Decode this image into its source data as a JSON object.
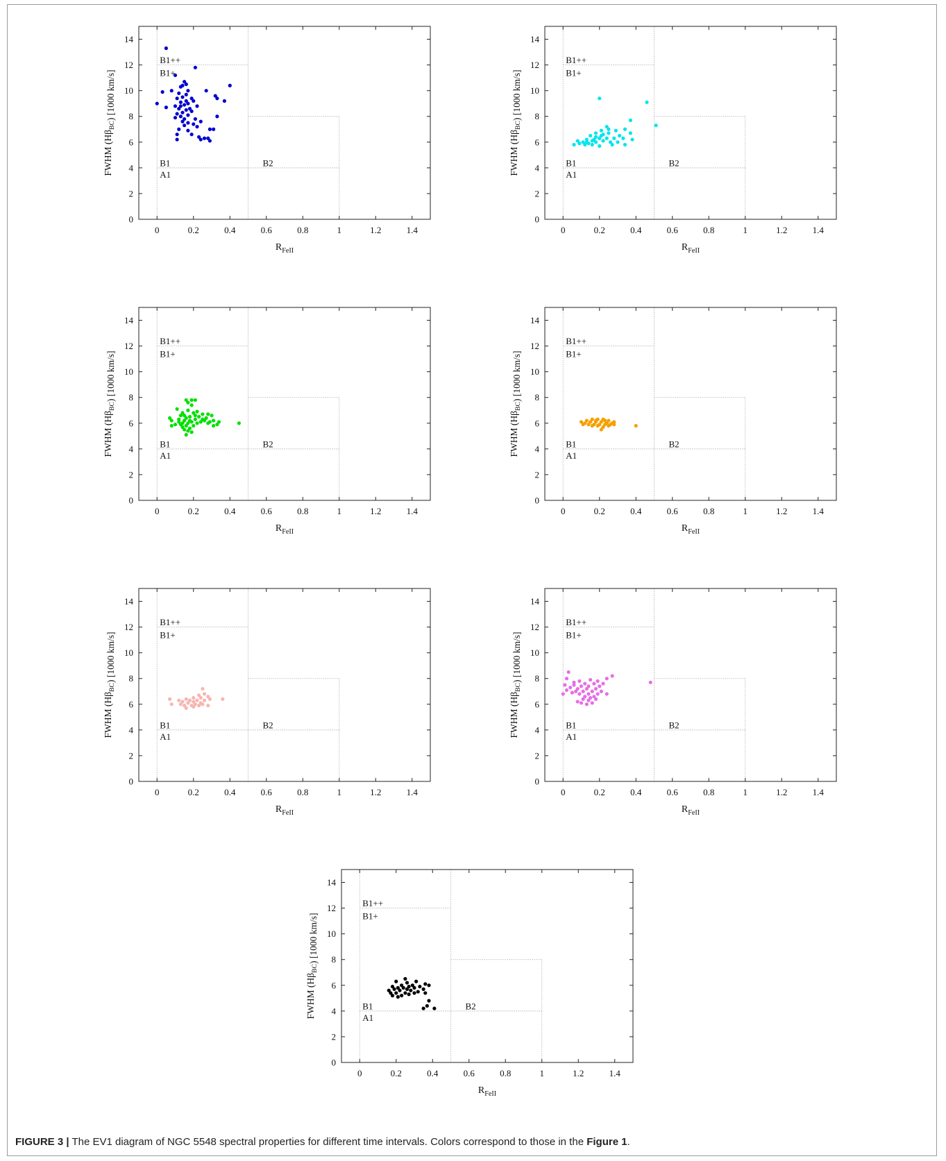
{
  "chart_data": [
    {
      "type": "scatter",
      "color": "#0000d0",
      "xlabel": "R_FeII",
      "ylabel": "FWHM (Hβ_BC) [1000 km/s]",
      "xlim": [
        -0.1,
        1.5
      ],
      "ylim": [
        0,
        15
      ],
      "xticks": [
        "0",
        "0.2",
        "0.4",
        "0.6",
        "0.8",
        "1",
        "1.2",
        "1.4"
      ],
      "yticks": [
        "0",
        "2",
        "4",
        "6",
        "8",
        "10",
        "12",
        "14"
      ],
      "region_labels": [
        "B1++",
        "B1+",
        "B1",
        "A1",
        "B2"
      ],
      "points": [
        [
          0.05,
          13.3
        ],
        [
          0.21,
          11.8
        ],
        [
          0.1,
          11.2
        ],
        [
          0.4,
          10.4
        ],
        [
          0.15,
          10.7
        ],
        [
          0.14,
          10.4
        ],
        [
          0.16,
          10.5
        ],
        [
          0.13,
          10.3
        ],
        [
          0.17,
          10.0
        ],
        [
          0.08,
          10.0
        ],
        [
          0.27,
          10.0
        ],
        [
          0.03,
          9.9
        ],
        [
          0.12,
          9.8
        ],
        [
          0.16,
          9.7
        ],
        [
          0.19,
          9.4
        ],
        [
          0.14,
          9.5
        ],
        [
          0.32,
          9.6
        ],
        [
          0.11,
          9.4
        ],
        [
          0.37,
          9.2
        ],
        [
          0.33,
          9.4
        ],
        [
          0.2,
          9.2
        ],
        [
          0.13,
          9.1
        ],
        [
          0.17,
          9.0
        ],
        [
          0.0,
          9.0
        ],
        [
          0.15,
          8.9
        ],
        [
          0.22,
          8.8
        ],
        [
          0.1,
          8.8
        ],
        [
          0.05,
          8.7
        ],
        [
          0.12,
          8.6
        ],
        [
          0.16,
          8.5
        ],
        [
          0.14,
          8.3
        ],
        [
          0.19,
          8.4
        ],
        [
          0.11,
          8.2
        ],
        [
          0.17,
          8.1
        ],
        [
          0.13,
          8.0
        ],
        [
          0.21,
          7.8
        ],
        [
          0.14,
          7.6
        ],
        [
          0.1,
          7.9
        ],
        [
          0.17,
          7.5
        ],
        [
          0.24,
          7.6
        ],
        [
          0.33,
          8.0
        ],
        [
          0.15,
          7.3
        ],
        [
          0.12,
          7.0
        ],
        [
          0.22,
          7.2
        ],
        [
          0.17,
          6.9
        ],
        [
          0.29,
          7.0
        ],
        [
          0.31,
          7.0
        ],
        [
          0.11,
          6.6
        ],
        [
          0.23,
          6.4
        ],
        [
          0.24,
          6.2
        ],
        [
          0.26,
          6.3
        ],
        [
          0.28,
          6.3
        ],
        [
          0.29,
          6.1
        ],
        [
          0.11,
          6.2
        ],
        [
          0.19,
          6.6
        ],
        [
          0.15,
          7.8
        ],
        [
          0.18,
          8.6
        ],
        [
          0.13,
          8.8
        ],
        [
          0.2,
          7.4
        ],
        [
          0.16,
          9.2
        ]
      ]
    },
    {
      "type": "scatter",
      "color": "#00e5ee",
      "xlabel": "R_FeII",
      "ylabel": "FWHM (Hβ_BC) [1000 km/s]",
      "xlim": [
        -0.1,
        1.5
      ],
      "ylim": [
        0,
        15
      ],
      "xticks": [
        "0",
        "0.2",
        "0.4",
        "0.6",
        "0.8",
        "1",
        "1.2",
        "1.4"
      ],
      "yticks": [
        "0",
        "2",
        "4",
        "6",
        "8",
        "10",
        "12",
        "14"
      ],
      "region_labels": [
        "B1++",
        "B1+",
        "B1",
        "A1",
        "B2"
      ],
      "points": [
        [
          0.2,
          9.4
        ],
        [
          0.46,
          9.1
        ],
        [
          0.37,
          7.7
        ],
        [
          0.51,
          7.3
        ],
        [
          0.24,
          7.2
        ],
        [
          0.25,
          7.0
        ],
        [
          0.34,
          7.0
        ],
        [
          0.21,
          6.9
        ],
        [
          0.29,
          6.9
        ],
        [
          0.37,
          6.7
        ],
        [
          0.18,
          6.7
        ],
        [
          0.22,
          6.6
        ],
        [
          0.15,
          6.5
        ],
        [
          0.31,
          6.5
        ],
        [
          0.18,
          6.4
        ],
        [
          0.24,
          6.3
        ],
        [
          0.28,
          6.3
        ],
        [
          0.13,
          6.2
        ],
        [
          0.2,
          6.3
        ],
        [
          0.33,
          6.3
        ],
        [
          0.38,
          6.2
        ],
        [
          0.08,
          6.1
        ],
        [
          0.16,
          6.1
        ],
        [
          0.22,
          6.1
        ],
        [
          0.26,
          6.0
        ],
        [
          0.11,
          6.0
        ],
        [
          0.14,
          5.9
        ],
        [
          0.18,
          6.0
        ],
        [
          0.3,
          6.0
        ],
        [
          0.06,
          5.8
        ],
        [
          0.12,
          5.8
        ],
        [
          0.2,
          5.7
        ],
        [
          0.09,
          5.9
        ],
        [
          0.16,
          5.8
        ],
        [
          0.27,
          5.8
        ],
        [
          0.34,
          5.8
        ],
        [
          0.17,
          6.2
        ],
        [
          0.21,
          6.5
        ],
        [
          0.25,
          6.7
        ],
        [
          0.13,
          6.0
        ]
      ]
    },
    {
      "type": "scatter",
      "color": "#00e000",
      "xlabel": "R_FeII",
      "ylabel": "FWHM (Hβ_BC) [1000 km/s]",
      "xlim": [
        -0.1,
        1.5
      ],
      "ylim": [
        0,
        15
      ],
      "xticks": [
        "0",
        "0.2",
        "0.4",
        "0.6",
        "0.8",
        "1",
        "1.2",
        "1.4"
      ],
      "yticks": [
        "0",
        "2",
        "4",
        "6",
        "8",
        "10",
        "12",
        "14"
      ],
      "region_labels": [
        "B1++",
        "B1+",
        "B1",
        "A1",
        "B2"
      ],
      "points": [
        [
          0.16,
          7.8
        ],
        [
          0.19,
          7.8
        ],
        [
          0.21,
          7.8
        ],
        [
          0.17,
          7.6
        ],
        [
          0.19,
          7.4
        ],
        [
          0.11,
          7.1
        ],
        [
          0.17,
          7.0
        ],
        [
          0.22,
          6.9
        ],
        [
          0.14,
          6.8
        ],
        [
          0.2,
          6.8
        ],
        [
          0.25,
          6.7
        ],
        [
          0.28,
          6.7
        ],
        [
          0.3,
          6.6
        ],
        [
          0.13,
          6.6
        ],
        [
          0.18,
          6.5
        ],
        [
          0.23,
          6.5
        ],
        [
          0.27,
          6.4
        ],
        [
          0.16,
          6.4
        ],
        [
          0.07,
          6.4
        ],
        [
          0.12,
          6.3
        ],
        [
          0.21,
          6.3
        ],
        [
          0.26,
          6.2
        ],
        [
          0.31,
          6.2
        ],
        [
          0.15,
          6.2
        ],
        [
          0.08,
          6.2
        ],
        [
          0.19,
          6.1
        ],
        [
          0.24,
          6.1
        ],
        [
          0.34,
          6.1
        ],
        [
          0.14,
          6.0
        ],
        [
          0.17,
          6.0
        ],
        [
          0.22,
          6.0
        ],
        [
          0.28,
          6.0
        ],
        [
          0.45,
          6.0
        ],
        [
          0.1,
          5.9
        ],
        [
          0.13,
          5.9
        ],
        [
          0.16,
          5.8
        ],
        [
          0.2,
          5.8
        ],
        [
          0.31,
          5.8
        ],
        [
          0.33,
          5.9
        ],
        [
          0.08,
          5.8
        ],
        [
          0.14,
          5.7
        ],
        [
          0.18,
          5.6
        ],
        [
          0.15,
          5.5
        ],
        [
          0.17,
          5.4
        ],
        [
          0.19,
          5.3
        ],
        [
          0.16,
          5.1
        ],
        [
          0.12,
          6.1
        ],
        [
          0.21,
          6.6
        ],
        [
          0.25,
          6.3
        ],
        [
          0.29,
          6.1
        ],
        [
          0.18,
          6.2
        ],
        [
          0.15,
          6.6
        ]
      ]
    },
    {
      "type": "scatter",
      "color": "#f5a000",
      "xlabel": "R_FeII",
      "ylabel": "FWHM (Hβ_BC) [1000 km/s]",
      "xlim": [
        -0.1,
        1.5
      ],
      "ylim": [
        0,
        15
      ],
      "xticks": [
        "0",
        "0.2",
        "0.4",
        "0.6",
        "0.8",
        "1",
        "1.2",
        "1.4"
      ],
      "yticks": [
        "0",
        "2",
        "4",
        "6",
        "8",
        "10",
        "12",
        "14"
      ],
      "region_labels": [
        "B1++",
        "B1+",
        "B1",
        "A1",
        "B2"
      ],
      "points": [
        [
          0.1,
          6.1
        ],
        [
          0.13,
          6.2
        ],
        [
          0.16,
          6.3
        ],
        [
          0.19,
          6.3
        ],
        [
          0.22,
          6.3
        ],
        [
          0.25,
          6.2
        ],
        [
          0.28,
          6.1
        ],
        [
          0.12,
          6.0
        ],
        [
          0.15,
          6.1
        ],
        [
          0.18,
          6.1
        ],
        [
          0.21,
          6.1
        ],
        [
          0.24,
          6.0
        ],
        [
          0.27,
          6.0
        ],
        [
          0.14,
          5.9
        ],
        [
          0.17,
          5.9
        ],
        [
          0.2,
          5.9
        ],
        [
          0.23,
          5.9
        ],
        [
          0.26,
          5.9
        ],
        [
          0.16,
          5.8
        ],
        [
          0.19,
          5.8
        ],
        [
          0.22,
          5.7
        ],
        [
          0.25,
          5.8
        ],
        [
          0.28,
          5.9
        ],
        [
          0.21,
          5.5
        ],
        [
          0.4,
          5.8
        ],
        [
          0.18,
          6.2
        ],
        [
          0.23,
          6.2
        ],
        [
          0.11,
          5.9
        ]
      ]
    },
    {
      "type": "scatter",
      "color": "#f7b6b0",
      "xlabel": "R_FeII",
      "ylabel": "FWHM (Hβ_BC) [1000 km/s]",
      "xlim": [
        -0.1,
        1.5
      ],
      "ylim": [
        0,
        15
      ],
      "xticks": [
        "0",
        "0.2",
        "0.4",
        "0.6",
        "0.8",
        "1",
        "1.2",
        "1.4"
      ],
      "yticks": [
        "0",
        "2",
        "4",
        "6",
        "8",
        "10",
        "12",
        "14"
      ],
      "region_labels": [
        "B1++",
        "B1+",
        "B1",
        "A1",
        "B2"
      ],
      "points": [
        [
          0.25,
          7.2
        ],
        [
          0.26,
          6.8
        ],
        [
          0.23,
          6.7
        ],
        [
          0.28,
          6.6
        ],
        [
          0.2,
          6.5
        ],
        [
          0.24,
          6.5
        ],
        [
          0.07,
          6.4
        ],
        [
          0.36,
          6.4
        ],
        [
          0.16,
          6.4
        ],
        [
          0.29,
          6.4
        ],
        [
          0.12,
          6.3
        ],
        [
          0.18,
          6.3
        ],
        [
          0.22,
          6.3
        ],
        [
          0.26,
          6.3
        ],
        [
          0.14,
          6.2
        ],
        [
          0.2,
          6.2
        ],
        [
          0.24,
          6.1
        ],
        [
          0.08,
          6.0
        ],
        [
          0.17,
          6.1
        ],
        [
          0.21,
          6.0
        ],
        [
          0.25,
          6.0
        ],
        [
          0.15,
          5.9
        ],
        [
          0.19,
          5.9
        ],
        [
          0.23,
          5.9
        ],
        [
          0.28,
          5.9
        ],
        [
          0.16,
          5.7
        ],
        [
          0.2,
          5.8
        ],
        [
          0.13,
          6.0
        ]
      ]
    },
    {
      "type": "scatter",
      "color": "#e66ee6",
      "xlabel": "R_FeII",
      "ylabel": "FWHM (Hβ_BC) [1000 km/s]",
      "xlim": [
        -0.1,
        1.5
      ],
      "ylim": [
        0,
        15
      ],
      "xticks": [
        "0",
        "0.2",
        "0.4",
        "0.6",
        "0.8",
        "1",
        "1.2",
        "1.4"
      ],
      "yticks": [
        "0",
        "2",
        "4",
        "6",
        "8",
        "10",
        "12",
        "14"
      ],
      "region_labels": [
        "B1++",
        "B1+",
        "B1",
        "A1",
        "B2"
      ],
      "points": [
        [
          0.03,
          8.5
        ],
        [
          0.27,
          8.2
        ],
        [
          0.24,
          8.0
        ],
        [
          0.02,
          8.0
        ],
        [
          0.15,
          7.9
        ],
        [
          0.09,
          7.8
        ],
        [
          0.19,
          7.8
        ],
        [
          0.06,
          7.7
        ],
        [
          0.48,
          7.7
        ],
        [
          0.12,
          7.6
        ],
        [
          0.17,
          7.6
        ],
        [
          0.01,
          7.5
        ],
        [
          0.1,
          7.4
        ],
        [
          0.14,
          7.4
        ],
        [
          0.2,
          7.4
        ],
        [
          0.04,
          7.3
        ],
        [
          0.08,
          7.2
        ],
        [
          0.13,
          7.2
        ],
        [
          0.18,
          7.2
        ],
        [
          0.02,
          7.1
        ],
        [
          0.07,
          7.0
        ],
        [
          0.11,
          7.0
        ],
        [
          0.16,
          7.0
        ],
        [
          0.21,
          7.0
        ],
        [
          0.24,
          6.8
        ],
        [
          0.05,
          6.9
        ],
        [
          0.09,
          6.8
        ],
        [
          0.14,
          6.8
        ],
        [
          0.19,
          6.8
        ],
        [
          0.0,
          6.8
        ],
        [
          0.12,
          6.6
        ],
        [
          0.17,
          6.6
        ],
        [
          0.15,
          6.5
        ],
        [
          0.11,
          6.4
        ],
        [
          0.18,
          6.4
        ],
        [
          0.14,
          6.3
        ],
        [
          0.08,
          6.2
        ],
        [
          0.1,
          6.1
        ],
        [
          0.16,
          6.1
        ],
        [
          0.13,
          6.0
        ],
        [
          0.22,
          7.6
        ],
        [
          0.06,
          7.5
        ]
      ]
    },
    {
      "type": "scatter",
      "color": "#000000",
      "xlabel": "R_FeII",
      "ylabel": "FWHM (Hβ_BC) [1000 km/s]",
      "xlim": [
        -0.1,
        1.5
      ],
      "ylim": [
        0,
        15
      ],
      "xticks": [
        "0",
        "0.2",
        "0.4",
        "0.6",
        "0.8",
        "1",
        "1.2",
        "1.4"
      ],
      "yticks": [
        "0",
        "2",
        "4",
        "6",
        "8",
        "10",
        "12",
        "14"
      ],
      "region_labels": [
        "B1++",
        "B1+",
        "B1",
        "A1",
        "B2"
      ],
      "points": [
        [
          0.25,
          6.5
        ],
        [
          0.2,
          6.3
        ],
        [
          0.31,
          6.3
        ],
        [
          0.26,
          6.2
        ],
        [
          0.36,
          6.1
        ],
        [
          0.23,
          6.0
        ],
        [
          0.29,
          6.0
        ],
        [
          0.38,
          6.0
        ],
        [
          0.18,
          5.9
        ],
        [
          0.27,
          5.9
        ],
        [
          0.33,
          5.9
        ],
        [
          0.21,
          5.8
        ],
        [
          0.24,
          5.8
        ],
        [
          0.3,
          5.8
        ],
        [
          0.16,
          5.6
        ],
        [
          0.19,
          5.7
        ],
        [
          0.26,
          5.7
        ],
        [
          0.35,
          5.7
        ],
        [
          0.22,
          5.6
        ],
        [
          0.28,
          5.6
        ],
        [
          0.32,
          5.5
        ],
        [
          0.17,
          5.4
        ],
        [
          0.2,
          5.4
        ],
        [
          0.25,
          5.4
        ],
        [
          0.3,
          5.4
        ],
        [
          0.36,
          5.4
        ],
        [
          0.23,
          5.2
        ],
        [
          0.27,
          5.3
        ],
        [
          0.18,
          5.2
        ],
        [
          0.38,
          4.8
        ],
        [
          0.37,
          4.4
        ],
        [
          0.35,
          4.2
        ],
        [
          0.41,
          4.2
        ],
        [
          0.21,
          5.1
        ]
      ]
    }
  ],
  "caption": {
    "label": "FIGURE 3 |",
    "text_before": "The EV1 diagram of NGC 5548 spectral properties for different time intervals. Colors correspond to those in the",
    "bold_ref": "Figure 1",
    "text_after": "."
  }
}
